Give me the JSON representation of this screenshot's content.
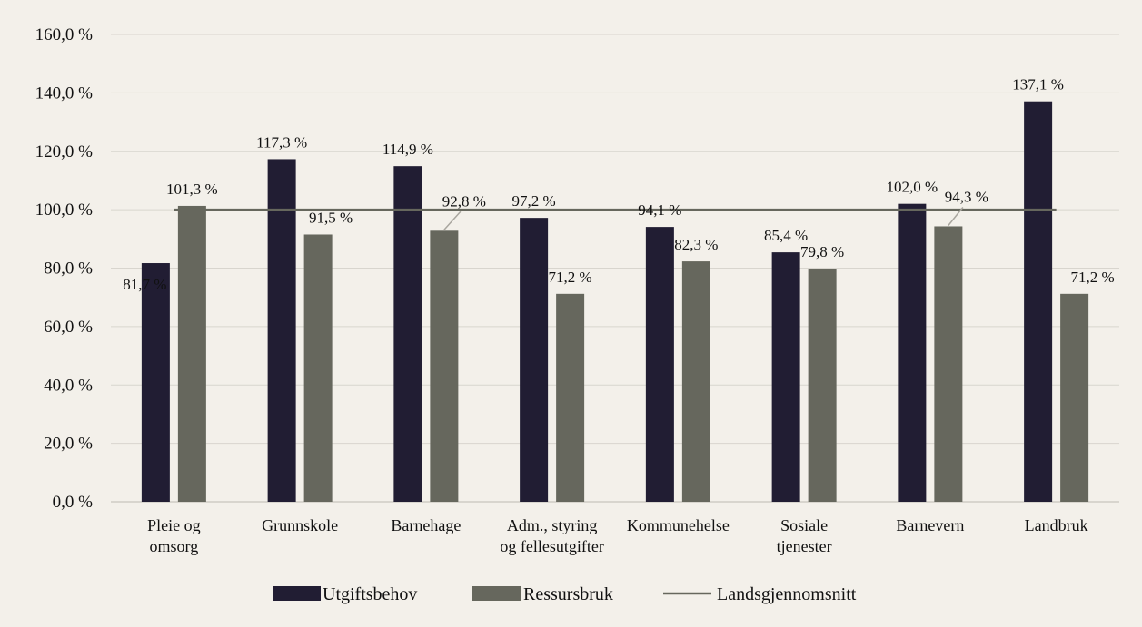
{
  "chart_data": {
    "type": "bar",
    "categories": [
      [
        "Pleie og",
        "omsorg"
      ],
      [
        "Grunnskole"
      ],
      [
        "Barnehage"
      ],
      [
        "Adm., styring",
        "og fellesutgifter"
      ],
      [
        "Kommunehelse"
      ],
      [
        "Sosiale",
        "tjenester"
      ],
      [
        "Barnevern"
      ],
      [
        "Landbruk"
      ]
    ],
    "series": [
      {
        "name": "Utgiftsbehov",
        "color": "#211d33",
        "values": [
          81.7,
          117.3,
          114.9,
          97.2,
          94.1,
          85.4,
          102.0,
          137.1
        ],
        "labels": [
          "81,7 %",
          "117,3 %",
          "114,9 %",
          "97,2 %",
          "94,1 %",
          "85,4 %",
          "102,0 %",
          "137,1 %"
        ]
      },
      {
        "name": "Ressursbruk",
        "color": "#66675d",
        "values": [
          101.3,
          91.5,
          92.8,
          71.2,
          82.3,
          79.8,
          94.3,
          71.2
        ],
        "labels": [
          "101,3 %",
          "91,5 %",
          "92,8 %",
          "71,2 %",
          "82,3 %",
          "79,8 %",
          "94,3 %",
          "71,2 %"
        ]
      }
    ],
    "reference_line": {
      "name": "Landsgjennomsnitt",
      "value": 100,
      "color": "#66675d"
    },
    "yticks": [
      0,
      20,
      40,
      60,
      80,
      100,
      120,
      140,
      160
    ],
    "ytick_labels": [
      "0,0 %",
      "20,0 %",
      "40,0 %",
      "60,0 %",
      "80,0 %",
      "100,0 %",
      "120,0 %",
      "140,0 %",
      "160,0 %"
    ],
    "ylim": [
      0,
      160
    ],
    "grid": true,
    "legend_position": "bottom",
    "title": "",
    "xlabel": "",
    "ylabel": ""
  }
}
